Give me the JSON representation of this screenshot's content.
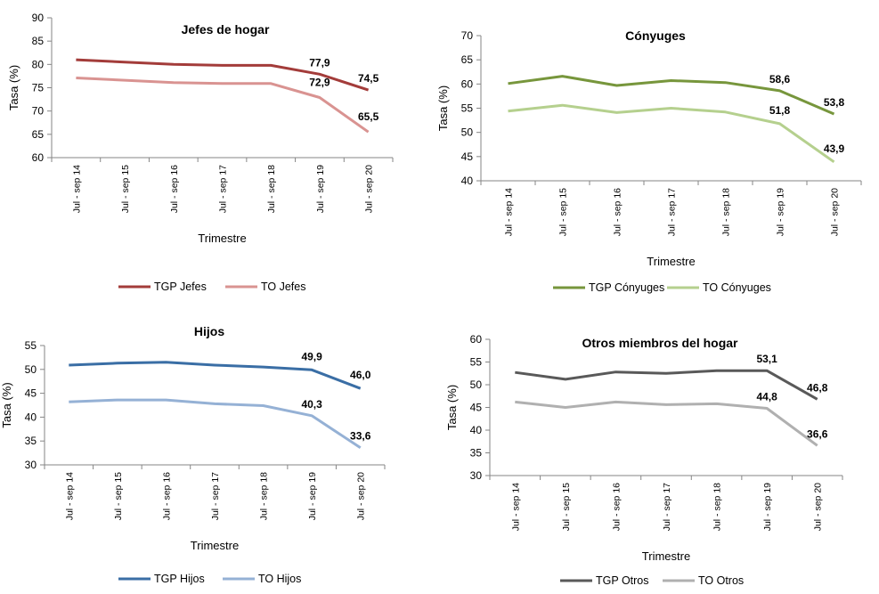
{
  "colors": {
    "jefes_tgp": "#a33c3a",
    "jefes_to": "#d99391",
    "conyuges_tgp": "#77963c",
    "conyuges_to": "#b5d08e",
    "hijos_tgp": "#3a6ea5",
    "hijos_to": "#95b1d5",
    "otros_tgp": "#595959",
    "otros_to": "#b0b0b0"
  },
  "chart_data": [
    {
      "type": "line",
      "title": "Jefes de hogar",
      "xlabel": "Trimestre",
      "ylabel": "Tasa (%)",
      "categories": [
        "Jul - sep 14",
        "Jul - sep 15",
        "Jul - sep 16",
        "Jul - sep 17",
        "Jul - sep 18",
        "Jul - sep 19",
        "Jul - sep 20"
      ],
      "ylim": [
        60,
        90
      ],
      "yticks": [
        60,
        65,
        70,
        75,
        80,
        85,
        90
      ],
      "legend_position": "bottom",
      "series": [
        {
          "name": "TGP Jefes",
          "color": "#a33c3a",
          "values": [
            81.0,
            80.5,
            80.0,
            79.8,
            79.8,
            77.9,
            74.5
          ],
          "labels": [
            {
              "index": 5,
              "text": "77,9"
            },
            {
              "index": 6,
              "text": "74,5"
            }
          ]
        },
        {
          "name": "TO Jefes",
          "color": "#d99391",
          "values": [
            77.1,
            76.6,
            76.1,
            75.9,
            75.9,
            72.9,
            65.5
          ],
          "labels": [
            {
              "index": 5,
              "text": "72,9"
            },
            {
              "index": 6,
              "text": "65,5"
            }
          ]
        }
      ]
    },
    {
      "type": "line",
      "title": "Cónyuges",
      "xlabel": "Trimestre",
      "ylabel": "Tasa (%)",
      "categories": [
        "Jul - sep 14",
        "Jul - sep 15",
        "Jul - sep 16",
        "Jul - sep 17",
        "Jul - sep 18",
        "Jul - sep 19",
        "Jul - sep 20"
      ],
      "ylim": [
        40,
        70
      ],
      "yticks": [
        40,
        45,
        50,
        55,
        60,
        65,
        70
      ],
      "legend_position": "bottom",
      "series": [
        {
          "name": "TGP Cónyuges",
          "color": "#77963c",
          "values": [
            60.1,
            61.6,
            59.7,
            60.7,
            60.3,
            58.6,
            53.8
          ],
          "labels": [
            {
              "index": 5,
              "text": "58,6"
            },
            {
              "index": 6,
              "text": "53,8"
            }
          ]
        },
        {
          "name": "TO Cónyuges",
          "color": "#b5d08e",
          "values": [
            54.4,
            55.6,
            54.1,
            55.0,
            54.2,
            51.8,
            43.9
          ],
          "labels": [
            {
              "index": 5,
              "text": "51,8"
            },
            {
              "index": 6,
              "text": "43,9"
            }
          ]
        }
      ]
    },
    {
      "type": "line",
      "title": "Hijos",
      "xlabel": "Trimestre",
      "ylabel": "Tasa (%)",
      "categories": [
        "Jul - sep 14",
        "Jul - sep 15",
        "Jul - sep 16",
        "Jul - sep 17",
        "Jul - sep 18",
        "Jul - sep 19",
        "Jul - sep 20"
      ],
      "ylim": [
        30,
        55
      ],
      "yticks": [
        30,
        35,
        40,
        45,
        50,
        55
      ],
      "legend_position": "bottom",
      "series": [
        {
          "name": "TGP Hijos",
          "color": "#3a6ea5",
          "values": [
            50.9,
            51.3,
            51.5,
            50.9,
            50.5,
            49.9,
            46.0
          ],
          "labels": [
            {
              "index": 5,
              "text": "49,9"
            },
            {
              "index": 6,
              "text": "46,0"
            }
          ]
        },
        {
          "name": "TO Hijos",
          "color": "#95b1d5",
          "values": [
            43.2,
            43.6,
            43.6,
            42.8,
            42.4,
            40.3,
            33.6
          ],
          "labels": [
            {
              "index": 5,
              "text": "40,3"
            },
            {
              "index": 6,
              "text": "33,6"
            }
          ]
        }
      ]
    },
    {
      "type": "line",
      "title": "Otros miembros del hogar",
      "xlabel": "Trimestre",
      "ylabel": "Tasa (%)",
      "categories": [
        "Jul - sep 14",
        "Jul - sep 15",
        "Jul - sep 16",
        "Jul - sep 17",
        "Jul - sep 18",
        "Jul - sep 19",
        "Jul - sep 20"
      ],
      "ylim": [
        30,
        60
      ],
      "yticks": [
        30,
        35,
        40,
        45,
        50,
        55,
        60
      ],
      "legend_position": "bottom",
      "series": [
        {
          "name": "TGP Otros",
          "color": "#595959",
          "values": [
            52.7,
            51.2,
            52.8,
            52.5,
            53.1,
            53.1,
            46.8
          ],
          "labels": [
            {
              "index": 5,
              "text": "53,1"
            },
            {
              "index": 6,
              "text": "46,8"
            }
          ]
        },
        {
          "name": "TO Otros",
          "color": "#b0b0b0",
          "values": [
            46.2,
            45.0,
            46.2,
            45.6,
            45.8,
            44.8,
            36.6
          ],
          "labels": [
            {
              "index": 5,
              "text": "44,8"
            },
            {
              "index": 6,
              "text": "36,6"
            }
          ]
        }
      ]
    }
  ]
}
